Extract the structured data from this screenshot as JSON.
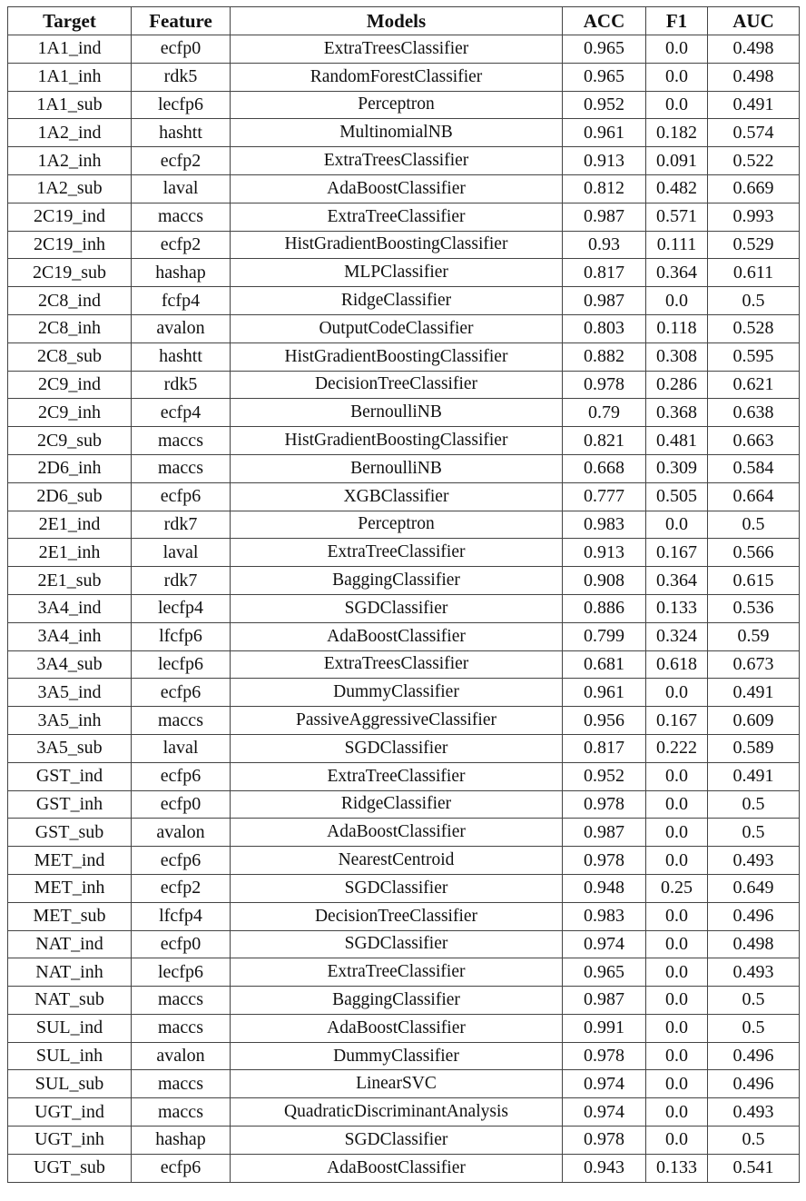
{
  "table": {
    "headers": [
      "Target",
      "Feature",
      "Models",
      "ACC",
      "F1",
      "AUC"
    ],
    "rows": [
      [
        "1A1_ind",
        "ecfp0",
        "ExtraTreesClassifier",
        "0.965",
        "0.0",
        "0.498"
      ],
      [
        "1A1_inh",
        "rdk5",
        "RandomForestClassifier",
        "0.965",
        "0.0",
        "0.498"
      ],
      [
        "1A1_sub",
        "lecfp6",
        "Perceptron",
        "0.952",
        "0.0",
        "0.491"
      ],
      [
        "1A2_ind",
        "hashtt",
        "MultinomialNB",
        "0.961",
        "0.182",
        "0.574"
      ],
      [
        "1A2_inh",
        "ecfp2",
        "ExtraTreesClassifier",
        "0.913",
        "0.091",
        "0.522"
      ],
      [
        "1A2_sub",
        "laval",
        "AdaBoostClassifier",
        "0.812",
        "0.482",
        "0.669"
      ],
      [
        "2C19_ind",
        "maccs",
        "ExtraTreeClassifier",
        "0.987",
        "0.571",
        "0.993"
      ],
      [
        "2C19_inh",
        "ecfp2",
        "HistGradientBoostingClassifier",
        "0.93",
        "0.111",
        "0.529"
      ],
      [
        "2C19_sub",
        "hashap",
        "MLPClassifier",
        "0.817",
        "0.364",
        "0.611"
      ],
      [
        "2C8_ind",
        "fcfp4",
        "RidgeClassifier",
        "0.987",
        "0.0",
        "0.5"
      ],
      [
        "2C8_inh",
        "avalon",
        "OutputCodeClassifier",
        "0.803",
        "0.118",
        "0.528"
      ],
      [
        "2C8_sub",
        "hashtt",
        "HistGradientBoostingClassifier",
        "0.882",
        "0.308",
        "0.595"
      ],
      [
        "2C9_ind",
        "rdk5",
        "DecisionTreeClassifier",
        "0.978",
        "0.286",
        "0.621"
      ],
      [
        "2C9_inh",
        "ecfp4",
        "BernoulliNB",
        "0.79",
        "0.368",
        "0.638"
      ],
      [
        "2C9_sub",
        "maccs",
        "HistGradientBoostingClassifier",
        "0.821",
        "0.481",
        "0.663"
      ],
      [
        "2D6_inh",
        "maccs",
        "BernoulliNB",
        "0.668",
        "0.309",
        "0.584"
      ],
      [
        "2D6_sub",
        "ecfp6",
        "XGBClassifier",
        "0.777",
        "0.505",
        "0.664"
      ],
      [
        "2E1_ind",
        "rdk7",
        "Perceptron",
        "0.983",
        "0.0",
        "0.5"
      ],
      [
        "2E1_inh",
        "laval",
        "ExtraTreeClassifier",
        "0.913",
        "0.167",
        "0.566"
      ],
      [
        "2E1_sub",
        "rdk7",
        "BaggingClassifier",
        "0.908",
        "0.364",
        "0.615"
      ],
      [
        "3A4_ind",
        "lecfp4",
        "SGDClassifier",
        "0.886",
        "0.133",
        "0.536"
      ],
      [
        "3A4_inh",
        "lfcfp6",
        "AdaBoostClassifier",
        "0.799",
        "0.324",
        "0.59"
      ],
      [
        "3A4_sub",
        "lecfp6",
        "ExtraTreesClassifier",
        "0.681",
        "0.618",
        "0.673"
      ],
      [
        "3A5_ind",
        "ecfp6",
        "DummyClassifier",
        "0.961",
        "0.0",
        "0.491"
      ],
      [
        "3A5_inh",
        "maccs",
        "PassiveAggressiveClassifier",
        "0.956",
        "0.167",
        "0.609"
      ],
      [
        "3A5_sub",
        "laval",
        "SGDClassifier",
        "0.817",
        "0.222",
        "0.589"
      ],
      [
        "GST_ind",
        "ecfp6",
        "ExtraTreeClassifier",
        "0.952",
        "0.0",
        "0.491"
      ],
      [
        "GST_inh",
        "ecfp0",
        "RidgeClassifier",
        "0.978",
        "0.0",
        "0.5"
      ],
      [
        "GST_sub",
        "avalon",
        "AdaBoostClassifier",
        "0.987",
        "0.0",
        "0.5"
      ],
      [
        "MET_ind",
        "ecfp6",
        "NearestCentroid",
        "0.978",
        "0.0",
        "0.493"
      ],
      [
        "MET_inh",
        "ecfp2",
        "SGDClassifier",
        "0.948",
        "0.25",
        "0.649"
      ],
      [
        "MET_sub",
        "lfcfp4",
        "DecisionTreeClassifier",
        "0.983",
        "0.0",
        "0.496"
      ],
      [
        "NAT_ind",
        "ecfp0",
        "SGDClassifier",
        "0.974",
        "0.0",
        "0.498"
      ],
      [
        "NAT_inh",
        "lecfp6",
        "ExtraTreeClassifier",
        "0.965",
        "0.0",
        "0.493"
      ],
      [
        "NAT_sub",
        "maccs",
        "BaggingClassifier",
        "0.987",
        "0.0",
        "0.5"
      ],
      [
        "SUL_ind",
        "maccs",
        "AdaBoostClassifier",
        "0.991",
        "0.0",
        "0.5"
      ],
      [
        "SUL_inh",
        "avalon",
        "DummyClassifier",
        "0.978",
        "0.0",
        "0.496"
      ],
      [
        "SUL_sub",
        "maccs",
        "LinearSVC",
        "0.974",
        "0.0",
        "0.496"
      ],
      [
        "UGT_ind",
        "maccs",
        "QuadraticDiscriminantAnalysis",
        "0.974",
        "0.0",
        "0.493"
      ],
      [
        "UGT_inh",
        "hashap",
        "SGDClassifier",
        "0.978",
        "0.0",
        "0.5"
      ],
      [
        "UGT_sub",
        "ecfp6",
        "AdaBoostClassifier",
        "0.943",
        "0.133",
        "0.541"
      ]
    ]
  }
}
